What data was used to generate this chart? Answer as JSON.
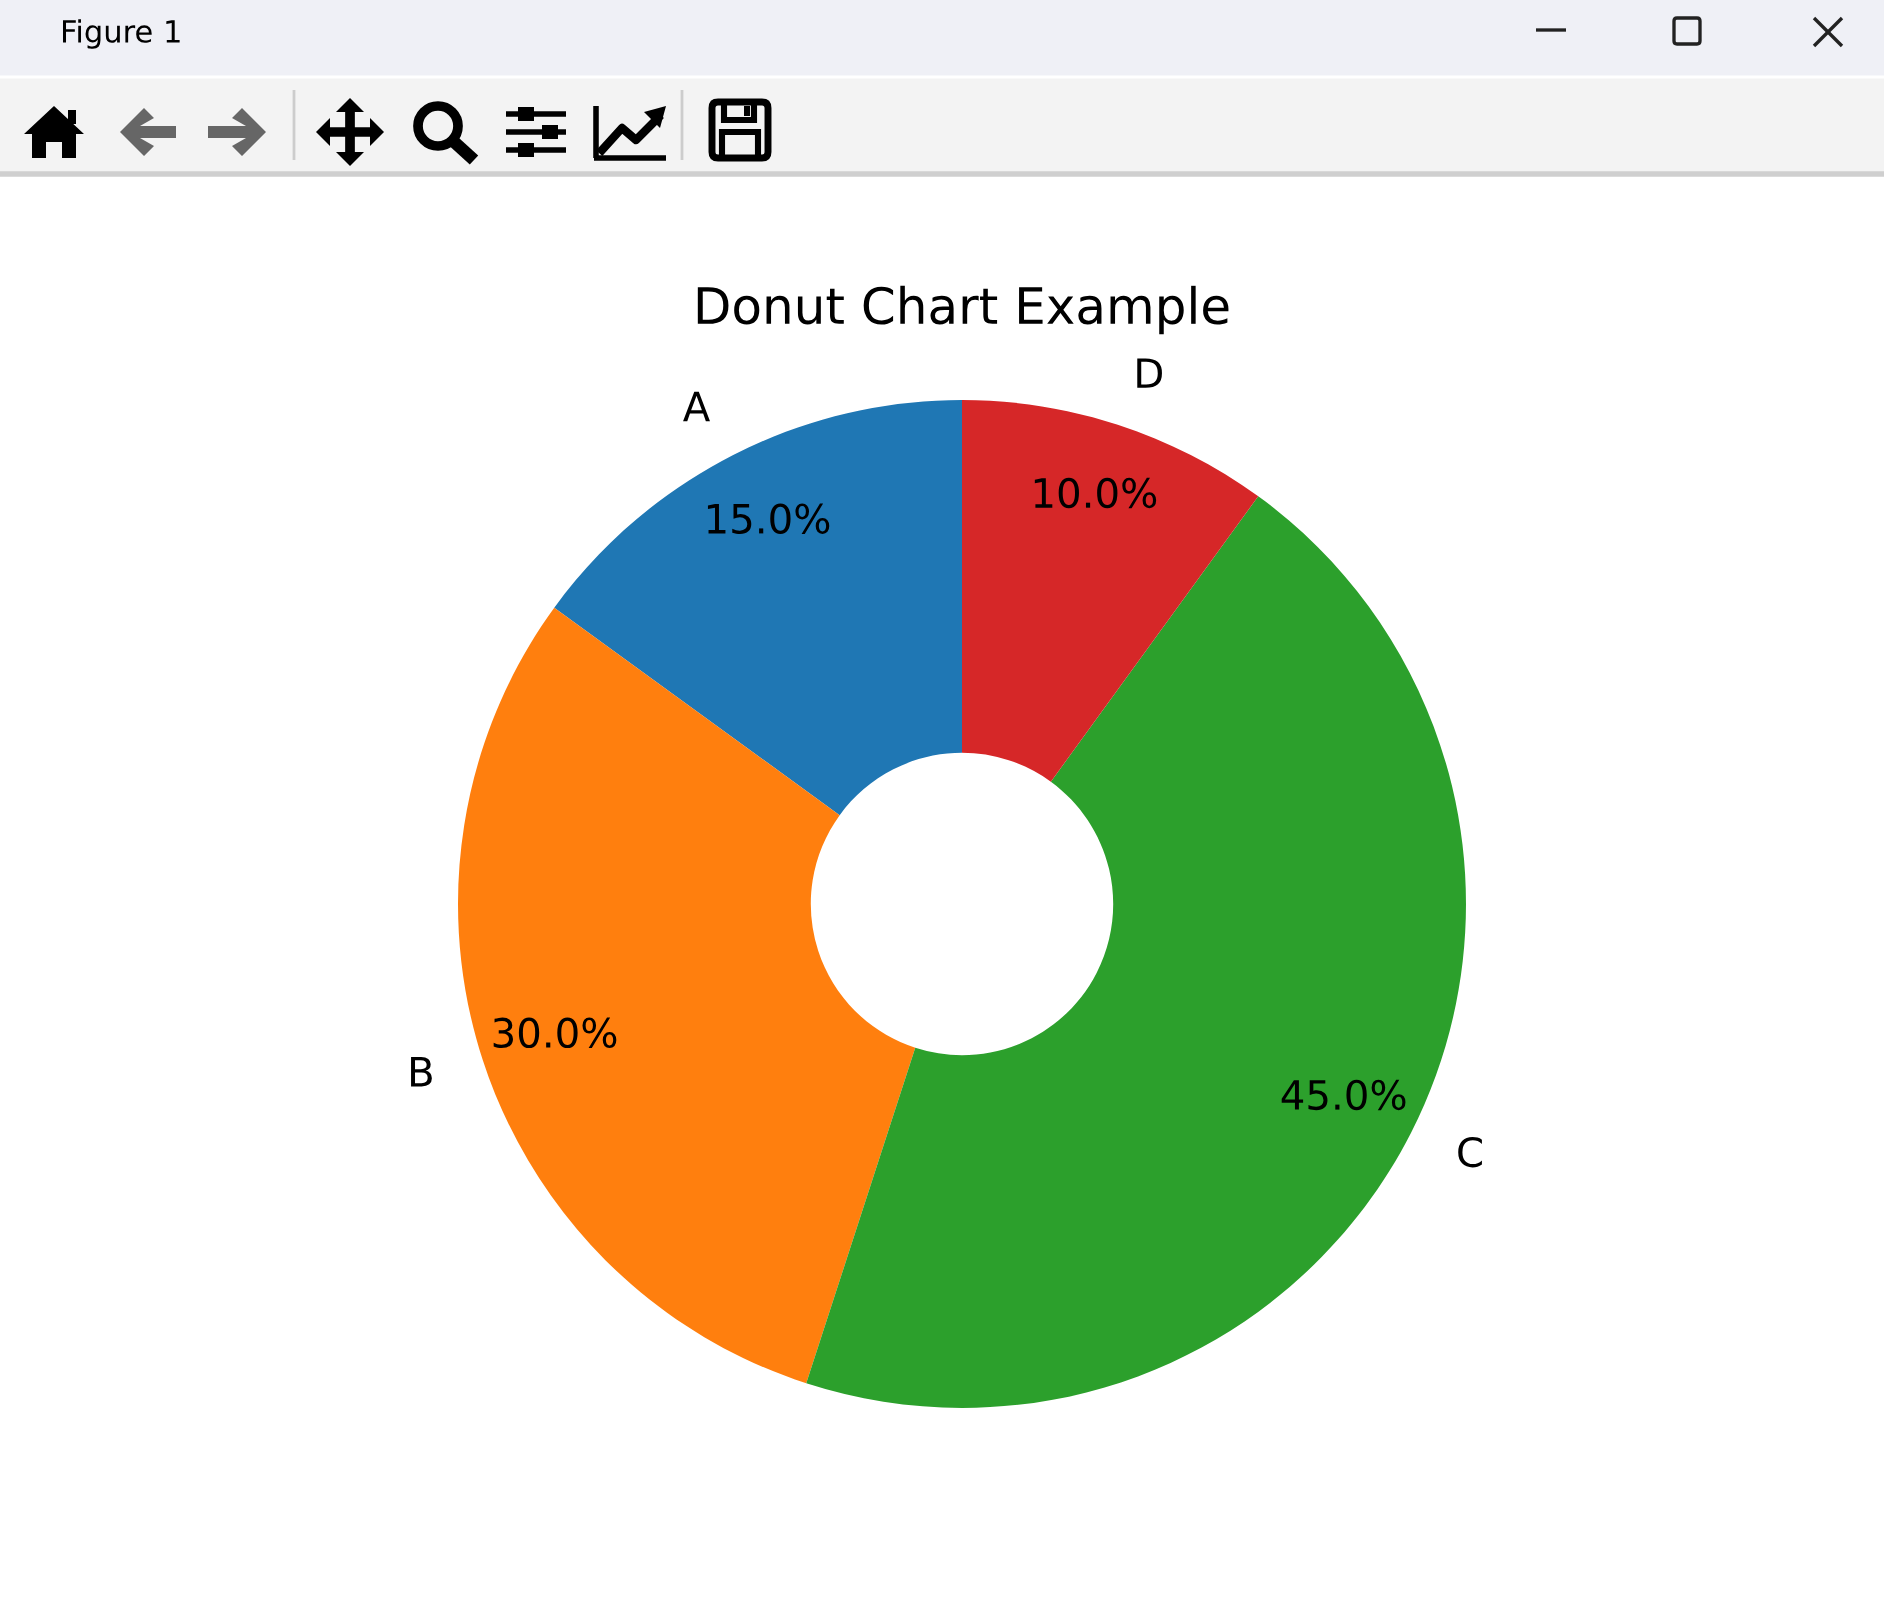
{
  "chart_data": {
    "type": "donut",
    "title": "Donut Chart Example",
    "categories": [
      "A",
      "B",
      "C",
      "D"
    ],
    "values": [
      15,
      30,
      45,
      10
    ],
    "colors": [
      "#1f77b4",
      "#ff7f0e",
      "#2ca02c",
      "#d62728"
    ],
    "value_labels": [
      "15.0%",
      "30.0%",
      "45.0%",
      "10.0%"
    ],
    "annotations": [
      "Figure 1"
    ]
  }
}
